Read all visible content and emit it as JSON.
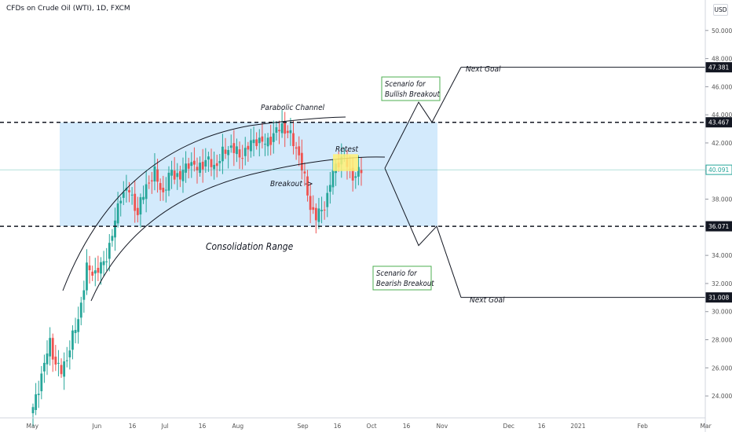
{
  "header": {
    "title": "CFDs on Crude Oil (WTI), 1D, FXCM",
    "currency": "USD"
  },
  "colors": {
    "up": "#26a69a",
    "down": "#ef5350",
    "range_fill": "#bbdefb",
    "retest": "#fff176",
    "label_border": "#4caf50",
    "last_price": "#26a69a"
  },
  "chart_data": {
    "type": "candlestick",
    "title": "CFDs on Crude Oil (WTI), 1D, FXCM",
    "ylim": [
      23.0,
      52.0
    ],
    "y_ticks": [
      "24.000",
      "26.000",
      "28.000",
      "30.000",
      "32.000",
      "34.000",
      "36.000",
      "38.000",
      "40.000",
      "42.000",
      "44.000",
      "46.000",
      "48.000",
      "50.000"
    ],
    "x_ticks": [
      "May",
      "Jun",
      "16",
      "Jul",
      "16",
      "Aug",
      "Sep",
      "16",
      "Oct",
      "16",
      "Nov",
      "Dec",
      "16",
      "2021",
      "Feb",
      "Mar"
    ],
    "levels": {
      "resistance": 43.467,
      "support": 36.071,
      "last": 40.091,
      "bull_goal": 47.381,
      "bear_goal": 31.008
    },
    "price_labels": [
      "47.381",
      "43.467",
      "40.091",
      "36.071",
      "31.008"
    ],
    "trend_path": [
      [
        0,
        23.0
      ],
      [
        3,
        25.5
      ],
      [
        6,
        27.8
      ],
      [
        8,
        26.3
      ],
      [
        10,
        25.7
      ],
      [
        12,
        26.8
      ],
      [
        16,
        29.5
      ],
      [
        19,
        33.0
      ],
      [
        22,
        32.8
      ],
      [
        25,
        33.4
      ],
      [
        28,
        35.4
      ],
      [
        31,
        38.4
      ],
      [
        34,
        38.6
      ],
      [
        37,
        37.0
      ],
      [
        40,
        39.0
      ],
      [
        43,
        39.8
      ],
      [
        46,
        38.4
      ],
      [
        49,
        40.0
      ],
      [
        52,
        39.5
      ],
      [
        55,
        40.7
      ],
      [
        58,
        40.1
      ],
      [
        61,
        40.8
      ],
      [
        64,
        40.3
      ],
      [
        67,
        41.2
      ],
      [
        70,
        41.8
      ],
      [
        73,
        41.0
      ],
      [
        76,
        41.7
      ],
      [
        79,
        42.3
      ],
      [
        82,
        41.9
      ],
      [
        85,
        42.6
      ],
      [
        88,
        43.2
      ],
      [
        90,
        42.8
      ],
      [
        92,
        42.0
      ],
      [
        94,
        41.2
      ],
      [
        96,
        39.3
      ],
      [
        98,
        37.5
      ],
      [
        100,
        36.7
      ],
      [
        102,
        37.2
      ],
      [
        104,
        38.2
      ],
      [
        106,
        39.9
      ],
      [
        108,
        40.8
      ],
      [
        110,
        40.9
      ],
      [
        112,
        39.9
      ],
      [
        114,
        39.6
      ],
      [
        116,
        40.1
      ]
    ],
    "annotations": {
      "parabolic_channel": "Parabolic Channel",
      "consolidation": "Consolidation Range",
      "retest": "Retest",
      "breakout": "Breakout ->",
      "bull_label_line1": "Scenario for",
      "bull_label_line2": "Bullish Breakout",
      "bear_label_line1": "Scenario for",
      "bear_label_line2": "Bearish Breakout",
      "bull_goal": "Next Goal",
      "bear_goal": "Next Goal"
    }
  }
}
